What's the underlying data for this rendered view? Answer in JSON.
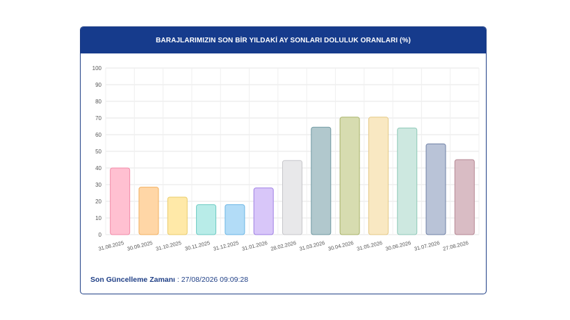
{
  "header": {
    "title": "BARAJLARIMIZIN SON BİR YILDAKİ AY SONLARI DOLULUK ORANLARI (%)"
  },
  "footer": {
    "label": "Son Güncelleme Zamanı",
    "value": ": 27/08/2026 09:09:28"
  },
  "chart_data": {
    "type": "bar",
    "title": "BARAJLARIMIZIN SON BİR YILDAKİ AY SONLARI DOLULUK ORANLARI (%)",
    "categories": [
      "31.08.2025",
      "30.09.2025",
      "31.10.2025",
      "30.11.2025",
      "31.12.2025",
      "31.01.2026",
      "28.02.2026",
      "31.03.2026",
      "30.04.2026",
      "31.05.2026",
      "30.06.2026",
      "31.07.2026",
      "27.08.2026"
    ],
    "values": [
      40,
      28.5,
      22.5,
      18,
      18,
      28,
      44.5,
      64.5,
      70.5,
      70.5,
      64,
      54.5,
      45
    ],
    "yticks": [
      0,
      10,
      20,
      30,
      40,
      50,
      60,
      70,
      80,
      90,
      100
    ],
    "ylim": [
      0,
      100
    ],
    "grid": true,
    "colors": [
      {
        "fill": "#ffc0d1",
        "stroke": "#f28aa8"
      },
      {
        "fill": "#ffd6a6",
        "stroke": "#f2b060"
      },
      {
        "fill": "#ffe9a8",
        "stroke": "#e8cc6a"
      },
      {
        "fill": "#b8ece8",
        "stroke": "#6ccac2"
      },
      {
        "fill": "#b2dcf7",
        "stroke": "#6bb5e4"
      },
      {
        "fill": "#d8c6f9",
        "stroke": "#9e7fe4"
      },
      {
        "fill": "#e8e8ea",
        "stroke": "#c6c6ca"
      },
      {
        "fill": "#b1c8cd",
        "stroke": "#6f98a1"
      },
      {
        "fill": "#d7dcb0",
        "stroke": "#a9b36a"
      },
      {
        "fill": "#f9e8c2",
        "stroke": "#e4c884"
      },
      {
        "fill": "#cde8e0",
        "stroke": "#8fc9b8"
      },
      {
        "fill": "#b9c3d7",
        "stroke": "#6f80a6"
      },
      {
        "fill": "#d9bcc4",
        "stroke": "#b48592"
      }
    ]
  }
}
